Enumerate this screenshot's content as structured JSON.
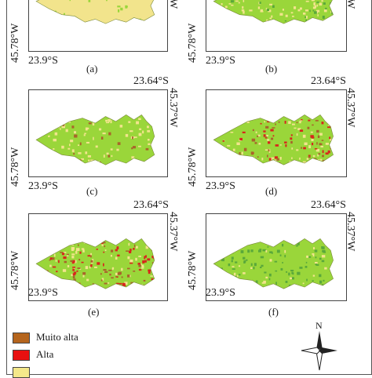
{
  "panels": [
    {
      "label": "(a)",
      "lat_top": "",
      "lon_right": "W",
      "lon_left": "45.78°W",
      "lat_bottom": "23.9°S",
      "scheme": "a"
    },
    {
      "label": "(b)",
      "lat_top": "",
      "lon_right": "W",
      "lon_left": "45.78°W",
      "lat_bottom": "23.9°S",
      "scheme": "b"
    },
    {
      "label": "(c)",
      "lat_top": "23.64°S",
      "lon_right": "45.37°W",
      "lon_left": "45.78°W",
      "lat_bottom": "23.9°S",
      "scheme": "c"
    },
    {
      "label": "(d)",
      "lat_top": "23.64°S",
      "lon_right": "45.37°W",
      "lon_left": "45.78°W",
      "lat_bottom": "23.9°S",
      "scheme": "d"
    },
    {
      "label": "(e)",
      "lat_top": "23.64°S",
      "lon_right": "45.37°W",
      "lon_left": "45.78°W",
      "lat_bottom": "23.9°S",
      "scheme": "e"
    },
    {
      "label": "(f)",
      "lat_top": "23.64°S",
      "lon_right": "45.37°W",
      "lon_left": "45.78°W",
      "lat_bottom": "23.9°S",
      "scheme": "f"
    }
  ],
  "legend": [
    {
      "label": "Muito alta",
      "color": "#b5651d"
    },
    {
      "label": "Alta",
      "color": "#e81010"
    },
    {
      "label": "",
      "color": "#f4e88a"
    }
  ],
  "north_label": "N",
  "colors": {
    "light_yellow": "#f2e48c",
    "green": "#9ad63a",
    "dark_green": "#5aa83a",
    "red": "#d8261c",
    "brown": "#a8652a"
  }
}
